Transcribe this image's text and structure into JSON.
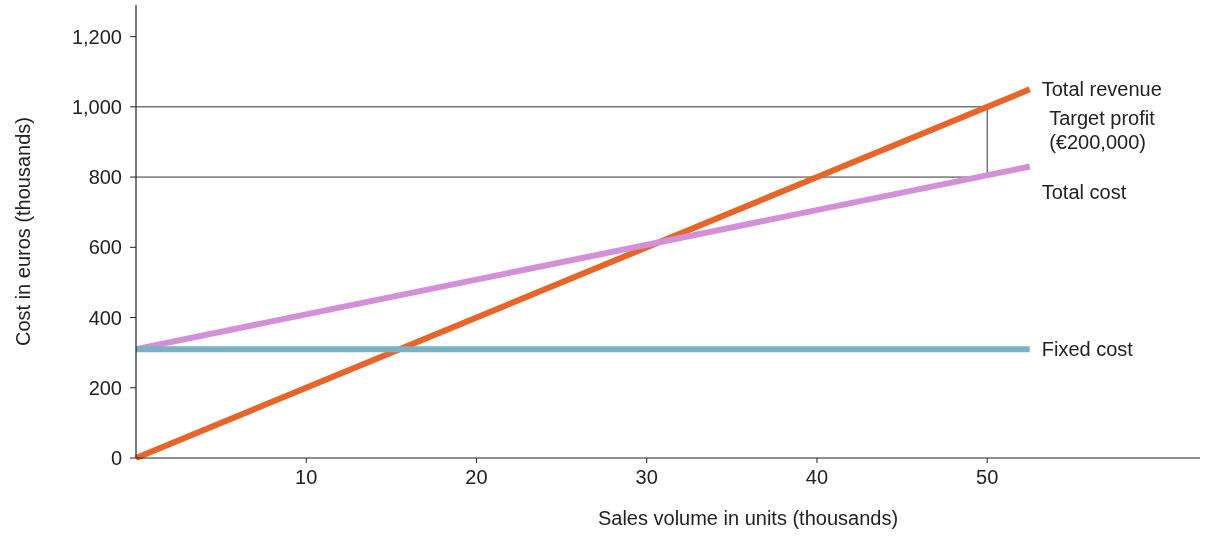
{
  "chart_data": {
    "type": "line",
    "xlabel": "Sales volume in units (thousands)",
    "ylabel": "Cost in euros (thousands)",
    "x": [
      0,
      52.5
    ],
    "xlim": [
      0,
      62.5
    ],
    "ylim": [
      0,
      1290
    ],
    "xticks": [
      10,
      20,
      30,
      40,
      50
    ],
    "yticks": [
      0,
      200,
      400,
      600,
      800,
      {
        "value": 1000,
        "label": "1,000"
      },
      {
        "value": 1200,
        "label": "1,200"
      }
    ],
    "series": [
      {
        "name": "Total revenue",
        "color": "#e8652a",
        "values": [
          0,
          1050
        ]
      },
      {
        "name": "Total cost",
        "color": "#d48fd9",
        "values": [
          310,
          830
        ]
      },
      {
        "name": "Fixed cost",
        "color": "#77b3c4",
        "values": [
          310,
          310
        ]
      }
    ],
    "ref_lines": [
      {
        "axis": "y",
        "value": 1000,
        "color": "#333333"
      },
      {
        "axis": "y",
        "value": 800,
        "color": "#333333"
      },
      {
        "axis": "x",
        "value": 50,
        "color": "#333333"
      }
    ],
    "annotations": [
      "Target profit\n(€200,000)"
    ],
    "grid": false,
    "legend": false,
    "marker": "none",
    "line_style": "solid"
  }
}
